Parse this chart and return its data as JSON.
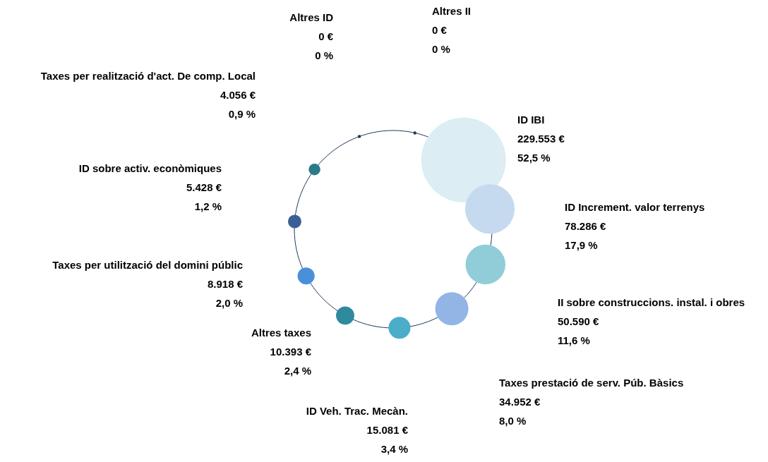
{
  "chart_data": {
    "type": "other",
    "categories": [
      "Altres II",
      "ID IBI",
      "ID Increment. valor terrenys",
      "II sobre construccions. instal. i obres",
      "Taxes prestació de serv. Púb. Bàsics",
      "ID Veh. Trac. Mecàn.",
      "Altres taxes",
      "Taxes per utilització del domini públic",
      "ID sobre activ. econòmiques",
      "Taxes per realització d'act. De comp. Local",
      "Altres ID"
    ],
    "values": [
      0,
      229553,
      78286,
      50590,
      34952,
      15081,
      10393,
      8918,
      5428,
      4056,
      0
    ],
    "value_labels": [
      "0 €\n0 %",
      "229.553 €\n52,5 %",
      "78.286 €\n17,9 %",
      "50.590 €\n11,6 %",
      "34.952 €\n8,0 %",
      "15.081 €\n3,4 %",
      "10.393 €\n2,4 %",
      "8.918 €\n2,0 %",
      "5.428 €\n1,2 %",
      "4.056 €\n0,9 %",
      "0 €\n0 %"
    ],
    "colors": [
      "#1e3a5f",
      "#dcedf3",
      "#c5d9ef",
      "#90cdd9",
      "#93b5e5",
      "#4aaec8",
      "#2e8a9c",
      "#4a90d9",
      "#3a6096",
      "#2b7a8a",
      "#1e3a5f"
    ]
  }
}
